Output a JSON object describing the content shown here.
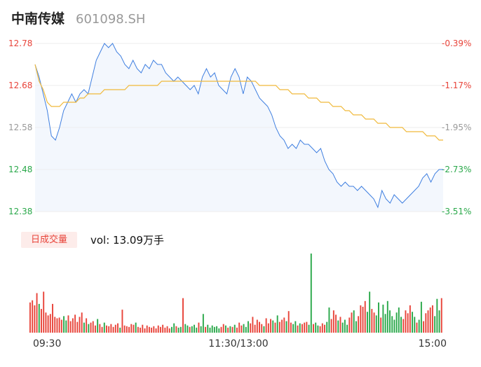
{
  "header": {
    "name": "中南传媒",
    "code": "601098.SH"
  },
  "volume_tab": {
    "label": "日成交量"
  },
  "volume_readout": "vol: 13.09万手",
  "colors": {
    "up": "#e8443a",
    "down": "#2aa84a",
    "flat": "#999999",
    "price": "#3f7fe0",
    "avg": "#f0b93a"
  },
  "chart_data": [
    {
      "type": "line",
      "title": "",
      "y_ticks": [
        "12.78",
        "12.68",
        "12.58",
        "12.48",
        "12.38"
      ],
      "pct_ticks": [
        "-0.39%",
        "-1.17%",
        "-1.95%",
        "-2.73%",
        "-3.51%"
      ],
      "ylim": [
        12.38,
        12.78
      ],
      "x_ticks": [
        "09:30",
        "11:30/13:00",
        "15:00"
      ],
      "series": [
        {
          "values": [
            12.73,
            12.7,
            12.66,
            12.62,
            12.56,
            12.55,
            12.58,
            12.62,
            12.64,
            12.66,
            12.64,
            12.66,
            12.67,
            12.66,
            12.7,
            12.74,
            12.76,
            12.78,
            12.77,
            12.78,
            12.76,
            12.75,
            12.73,
            12.72,
            12.74,
            12.72,
            12.71,
            12.73,
            12.72,
            12.74,
            12.73,
            12.73,
            12.71,
            12.7,
            12.69,
            12.7,
            12.69,
            12.68,
            12.67,
            12.68,
            12.66,
            12.7,
            12.72,
            12.7,
            12.71,
            12.68,
            12.67,
            12.66,
            12.7,
            12.72,
            12.7,
            12.66,
            12.7,
            12.69,
            12.67,
            12.65,
            12.64,
            12.63,
            12.61,
            12.58,
            12.56,
            12.55,
            12.53,
            12.54,
            12.53,
            12.55,
            12.54,
            12.54,
            12.53,
            12.52,
            12.53,
            12.5,
            12.48,
            12.47,
            12.45,
            12.44,
            12.45,
            12.44,
            12.44,
            12.43,
            12.44,
            12.43,
            12.42,
            12.41,
            12.39,
            12.43,
            12.41,
            12.4,
            12.42,
            12.41,
            12.4,
            12.41,
            12.42,
            12.43,
            12.44,
            12.46,
            12.47,
            12.45,
            12.47,
            12.48,
            12.48
          ]
        },
        {
          "values": [
            12.73,
            12.69,
            12.67,
            12.64,
            12.63,
            12.63,
            12.63,
            12.64,
            12.64,
            12.64,
            12.64,
            12.65,
            12.65,
            12.66,
            12.66,
            12.66,
            12.66,
            12.67,
            12.67,
            12.67,
            12.67,
            12.67,
            12.67,
            12.68,
            12.68,
            12.68,
            12.68,
            12.68,
            12.68,
            12.68,
            12.68,
            12.69,
            12.69,
            12.69,
            12.69,
            12.69,
            12.69,
            12.69,
            12.69,
            12.69,
            12.69,
            12.69,
            12.69,
            12.69,
            12.69,
            12.69,
            12.69,
            12.69,
            12.69,
            12.69,
            12.69,
            12.69,
            12.69,
            12.69,
            12.69,
            12.68,
            12.68,
            12.68,
            12.68,
            12.68,
            12.67,
            12.67,
            12.67,
            12.66,
            12.66,
            12.66,
            12.66,
            12.65,
            12.65,
            12.65,
            12.64,
            12.64,
            12.64,
            12.63,
            12.63,
            12.63,
            12.62,
            12.62,
            12.61,
            12.61,
            12.61,
            12.6,
            12.6,
            12.6,
            12.59,
            12.59,
            12.59,
            12.58,
            12.58,
            12.58,
            12.58,
            12.57,
            12.57,
            12.57,
            12.57,
            12.57,
            12.56,
            12.56,
            12.56,
            12.55,
            12.55
          ]
        }
      ]
    },
    {
      "type": "bar",
      "title": "",
      "values": [
        42,
        45,
        38,
        55,
        40,
        33,
        57,
        28,
        24,
        26,
        40,
        22,
        20,
        21,
        18,
        23,
        17,
        24,
        16,
        20,
        25,
        15,
        22,
        28,
        14,
        20,
        12,
        14,
        16,
        10,
        19,
        12,
        8,
        14,
        10,
        9,
        12,
        8,
        11,
        13,
        7,
        32,
        10,
        9,
        8,
        12,
        11,
        14,
        8,
        7,
        11,
        6,
        10,
        8,
        7,
        9,
        6,
        10,
        8,
        11,
        7,
        9,
        6,
        8,
        13,
        9,
        7,
        8,
        48,
        12,
        10,
        8,
        9,
        11,
        7,
        14,
        9,
        26,
        8,
        11,
        7,
        10,
        8,
        9,
        6,
        8,
        12,
        10,
        7,
        9,
        8,
        11,
        7,
        14,
        10,
        12,
        8,
        16,
        13,
        22,
        11,
        18,
        15,
        12,
        9,
        20,
        13,
        19,
        17,
        14,
        24,
        15,
        18,
        21,
        16,
        30,
        14,
        12,
        16,
        10,
        13,
        12,
        14,
        15,
        11,
        110,
        12,
        14,
        10,
        9,
        13,
        11,
        15,
        35,
        19,
        31,
        25,
        17,
        22,
        14,
        18,
        11,
        21,
        28,
        31,
        16,
        23,
        38,
        36,
        44,
        29,
        57,
        33,
        28,
        24,
        42,
        21,
        39,
        26,
        44,
        31,
        23,
        18,
        28,
        35,
        22,
        19,
        31,
        27,
        38,
        29,
        22,
        14,
        18,
        43,
        16,
        27,
        31,
        35,
        38,
        23,
        47,
        31,
        48
      ],
      "colors": "uuuuduuuuuuuuuudduuuuuuududuuuduuduuuuuuduuuuuuduuuuuuuuuuuuuuudduddudduddduddudddddduudududuuuddduuuuuuduuududuuuduudduduuuddudduuudduuududdduudduuuudduudduddddddddduuuuddudduuuuuddduuuudddudduu"
    }
  ]
}
